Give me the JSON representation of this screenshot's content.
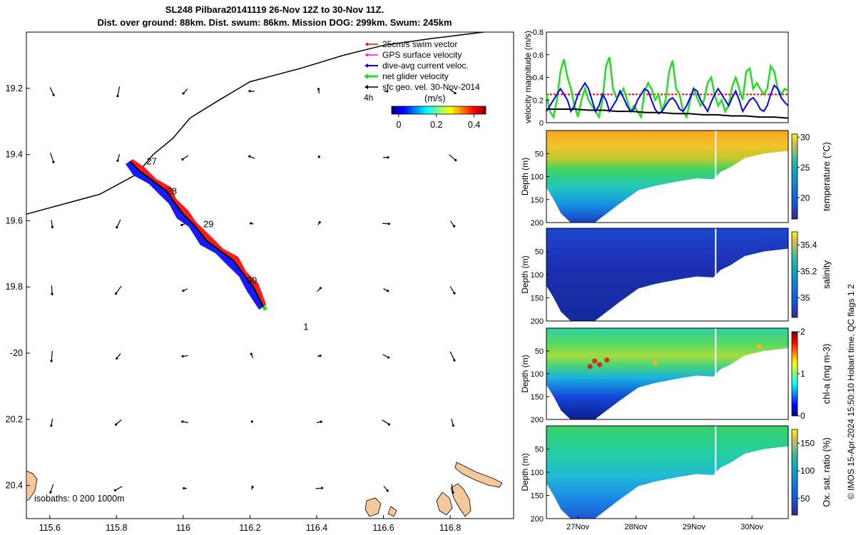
{
  "title": {
    "line1": "SL248 Pilbara20141119 26-Nov 12Z to 30-Nov 11Z.",
    "line2": "Dist. over ground: 88km. Dist. swum: 86km. Mission DOG: 299km. Swum: 245km"
  },
  "credit": "© IMOS 15-Apr-2024 15:50:10 Hobart time. QC flags 1 2",
  "colors": {
    "swim_vector": "#ff0000",
    "gps_velocity": "#ff00ff",
    "current_vector": "#0000ff",
    "net_velocity": "#00dd00",
    "geostrophic": "#000000",
    "land": "#f5c89c"
  },
  "chart_data": [
    {
      "type": "map",
      "xlim": [
        115.53,
        116.99
      ],
      "ylim": [
        -20.5,
        -19.03
      ],
      "x_ticks": [
        115.6,
        115.8,
        116,
        116.2,
        116.4,
        116.6,
        116.8
      ],
      "x_tick_labels": [
        "115.6",
        "115.8",
        "116",
        "116.2",
        "116.4",
        "116.6",
        "116.8"
      ],
      "y_ticks": [
        -19.2,
        -19.4,
        -19.6,
        -19.8,
        -20,
        -20.2,
        -20.4
      ],
      "y_tick_labels": [
        "19.2",
        "19.4",
        "19.6",
        "19.8",
        "-20",
        "20.2",
        "20.4"
      ],
      "legend": [
        {
          "label": "25cm/s swim vector",
          "color": "#ff0000"
        },
        {
          "label": "GPS surface velocity",
          "color": "#ff00ff"
        },
        {
          "label": "dive-avg current veloc.",
          "color": "#0000ff"
        },
        {
          "label": "net glider velocity",
          "color": "#00dd00"
        },
        {
          "label": "sfc geo. vel. 30-Nov-2014",
          "color": "#000000"
        }
      ],
      "colorbar": {
        "unit_label": "(m/s)",
        "side_label": "4h",
        "ticks": [
          0,
          0.2,
          0.4
        ],
        "tick_labels": [
          "0",
          "0.2",
          "0.4"
        ]
      },
      "track": [
        [
          115.84,
          -19.42
        ],
        [
          115.87,
          -19.45
        ],
        [
          115.91,
          -19.48
        ],
        [
          115.95,
          -19.51
        ],
        [
          115.97,
          -19.54
        ],
        [
          116.0,
          -19.58
        ],
        [
          116.03,
          -19.61
        ],
        [
          116.07,
          -19.66
        ],
        [
          116.11,
          -19.69
        ],
        [
          116.15,
          -19.72
        ],
        [
          116.18,
          -19.76
        ],
        [
          116.21,
          -19.8
        ],
        [
          116.24,
          -19.86
        ]
      ],
      "path_line": [
        [
          115.53,
          -19.58
        ],
        [
          115.64,
          -19.55
        ],
        [
          115.75,
          -19.52
        ],
        [
          115.86,
          -19.46
        ],
        [
          115.91,
          -19.4
        ],
        [
          115.97,
          -19.35
        ],
        [
          116.02,
          -19.29
        ],
        [
          116.1,
          -19.24
        ],
        [
          116.2,
          -19.18
        ],
        [
          116.35,
          -19.14
        ],
        [
          116.48,
          -19.1
        ],
        [
          116.6,
          -19.07
        ],
        [
          116.74,
          -19.05
        ],
        [
          116.9,
          -19.03
        ]
      ],
      "day_labels": [
        {
          "text": "27",
          "lon": 115.89,
          "lat": -19.43
        },
        {
          "text": "28",
          "lon": 115.95,
          "lat": -19.52
        },
        {
          "text": "29",
          "lon": 116.06,
          "lat": -19.62
        },
        {
          "text": "30",
          "lon": 116.19,
          "lat": -19.79
        },
        {
          "text": "1",
          "lon": 116.36,
          "lat": -19.93
        }
      ],
      "isobath_label": "isobaths: 0   200  1000m"
    },
    {
      "type": "line",
      "ylabel": "velocity magnitude (m/s)",
      "ylim": [
        0,
        0.8
      ],
      "y_ticks": [
        0,
        0.2,
        0.4,
        0.6,
        0.8
      ],
      "y_tick_labels": [
        "0",
        "0.2",
        "0.4",
        "0.6",
        "0.8"
      ],
      "series": [
        {
          "color": "#ff0000",
          "dashed": true,
          "values": [
            0.25,
            0.25,
            0.25,
            0.25,
            0.25,
            0.25,
            0.25
          ]
        },
        {
          "color": "#22dd22",
          "values": [
            0.25,
            0.1,
            0.05,
            0.2,
            0.45,
            0.56,
            0.4,
            0.3,
            0.15,
            0.05,
            0.2,
            0.3,
            0.2,
            0.15,
            0.1,
            0.05,
            0.2,
            0.5,
            0.58,
            0.3,
            0.22,
            0.25,
            0.3,
            0.2,
            0.1,
            0.15,
            0.1,
            0.05,
            0.28,
            0.35,
            0.3,
            0.2,
            0.25,
            0.1,
            0.2,
            0.45,
            0.55,
            0.3,
            0.25,
            0.1,
            0.05,
            0.2,
            0.3,
            0.22,
            0.15,
            0.2,
            0.35,
            0.4,
            0.25,
            0.15,
            0.2,
            0.1,
            0.15,
            0.32,
            0.4,
            0.3,
            0.2,
            0.45,
            0.48,
            0.3,
            0.35,
            0.3,
            0.25,
            0.3,
            0.5,
            0.45,
            0.3,
            0.25,
            0.3,
            0.28
          ]
        },
        {
          "color": "#0000ff",
          "values": [
            0.1,
            0.15,
            0.2,
            0.25,
            0.3,
            0.25,
            0.2,
            0.1,
            0.15,
            0.25,
            0.3,
            0.35,
            0.3,
            0.2,
            0.1,
            0.15,
            0.25,
            0.2,
            0.1,
            0.15,
            0.2,
            0.28,
            0.22,
            0.15,
            0.1,
            0.12,
            0.2,
            0.25,
            0.3,
            0.28,
            0.2,
            0.12,
            0.08,
            0.1,
            0.15,
            0.2,
            0.22,
            0.18,
            0.12,
            0.1,
            0.15,
            0.22,
            0.3,
            0.28,
            0.2,
            0.15,
            0.1,
            0.18,
            0.25,
            0.3,
            0.25,
            0.2,
            0.15,
            0.22,
            0.28,
            0.2,
            0.1,
            0.15,
            0.2,
            0.22,
            0.18,
            0.12,
            0.1,
            0.15,
            0.25,
            0.33,
            0.3,
            0.22,
            0.18,
            0.15
          ]
        },
        {
          "color": "#000000",
          "values": [
            0.12,
            0.12,
            0.12,
            0.11,
            0.11,
            0.1,
            0.1,
            0.09,
            0.09,
            0.08,
            0.08,
            0.07,
            0.07,
            0.06,
            0.06,
            0.05,
            0.05,
            0.04
          ]
        }
      ]
    },
    {
      "type": "heatmap",
      "ylabel": "Depth (m)",
      "cbar_label": "temperature (°C)",
      "clim": [
        16.5,
        30.5
      ],
      "cbar_ticks": [
        20,
        25,
        30
      ],
      "cbar_tick_labels": [
        "20",
        "25",
        "30"
      ],
      "y_ticks": [
        50,
        100,
        150,
        200
      ],
      "y_tick_labels": [
        "50",
        "100",
        "150",
        "200"
      ]
    },
    {
      "type": "heatmap",
      "ylabel": "Depth (m)",
      "cbar_label": "salinity",
      "clim": [
        34.85,
        35.5
      ],
      "cbar_ticks": [
        35,
        35.2,
        35.4
      ],
      "cbar_tick_labels": [
        "35",
        "35.2",
        "35.4"
      ],
      "y_ticks": [
        50,
        100,
        150,
        200
      ],
      "y_tick_labels": [
        "50",
        "100",
        "150",
        "200"
      ]
    },
    {
      "type": "heatmap",
      "ylabel": "Depth (m)",
      "cbar_label": "chl-a (mg m-3)",
      "clim": [
        0,
        2
      ],
      "cbar_ticks": [
        0,
        1,
        2
      ],
      "cbar_tick_labels": [
        "0",
        "1",
        "2"
      ],
      "y_ticks": [
        50,
        100,
        150,
        200
      ],
      "y_tick_labels": [
        "50",
        "100",
        "150",
        "200"
      ]
    },
    {
      "type": "heatmap",
      "ylabel": "Depth (m)",
      "cbar_label": "Ox. sat. ratio (%)",
      "clim": [
        20,
        175
      ],
      "cbar_ticks": [
        50,
        100,
        150
      ],
      "cbar_tick_labels": [
        "50",
        "100",
        "150"
      ],
      "y_ticks": [
        50,
        100,
        150,
        200
      ],
      "y_tick_labels": [
        "50",
        "100",
        "150",
        "200"
      ],
      "x_tick_labels": [
        "27Nov",
        "28Nov",
        "29Nov",
        "30Nov"
      ]
    }
  ]
}
